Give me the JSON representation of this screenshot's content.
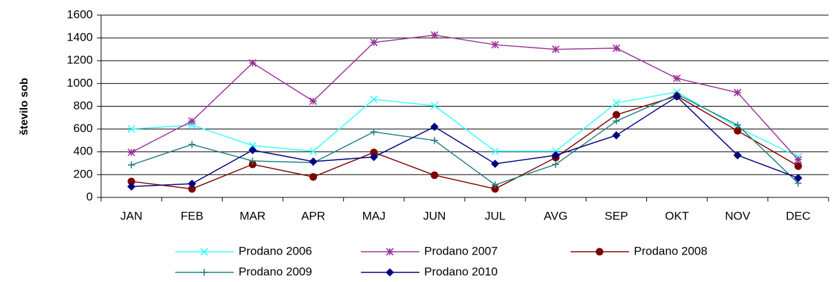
{
  "chart_data": {
    "type": "line",
    "y_label": "število sob",
    "categories": [
      "JAN",
      "FEB",
      "MAR",
      "APR",
      "MAJ",
      "JUN",
      "JUL",
      "AVG",
      "SEP",
      "OKT",
      "NOV",
      "DEC"
    ],
    "series": [
      {
        "name": "Prodano 2006",
        "color": "#33ffff",
        "marker": "x",
        "values": [
          600,
          635,
          455,
          405,
          860,
          805,
          405,
          405,
          830,
          925,
          615,
          355
        ]
      },
      {
        "name": "Prodano 2007",
        "color": "#993399",
        "marker": "star",
        "values": [
          395,
          670,
          1180,
          845,
          1360,
          1425,
          1340,
          1300,
          1310,
          1045,
          920,
          330
        ]
      },
      {
        "name": "Prodano 2008",
        "color": "#800000",
        "marker": "circle",
        "values": [
          140,
          75,
          290,
          180,
          395,
          195,
          75,
          350,
          725,
          890,
          585,
          275
        ]
      },
      {
        "name": "Prodano 2009",
        "color": "#208080",
        "marker": "plus",
        "values": [
          285,
          465,
          320,
          305,
          575,
          500,
          110,
          290,
          670,
          905,
          635,
          125
        ]
      },
      {
        "name": "Prodano 2010",
        "color": "#000080",
        "marker": "diamond",
        "values": [
          95,
          120,
          415,
          315,
          355,
          620,
          295,
          370,
          545,
          885,
          370,
          170
        ]
      }
    ],
    "ylim": [
      0,
      1600
    ],
    "yticks": [
      0,
      200,
      400,
      600,
      800,
      1000,
      1200,
      1400,
      1600
    ],
    "grid": true,
    "legend": "bottom"
  }
}
